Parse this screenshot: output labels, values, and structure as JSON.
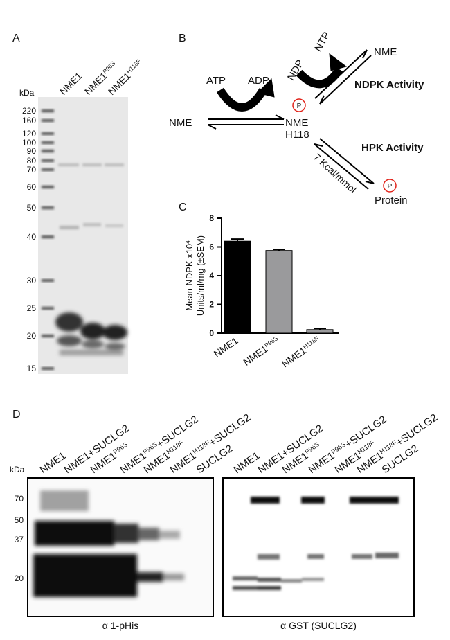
{
  "panel_a": {
    "label": "A",
    "unit": "kDa",
    "markers": [
      220,
      160,
      120,
      100,
      90,
      80,
      70,
      60,
      50,
      40,
      30,
      25,
      20,
      15
    ],
    "lanes": [
      {
        "base": "NME1"
      },
      {
        "base": "NME1",
        "sup": "P96S"
      },
      {
        "base": "NME1",
        "sup": "H118F"
      }
    ]
  },
  "panel_b": {
    "label": "B",
    "atp": "ATP",
    "adp": "ADP",
    "nme_left": "NME",
    "nme_center": "NME",
    "h118": "H118",
    "ndp": "NDP",
    "ntp": "NTP",
    "nme_right": "NME",
    "ndpk": "NDPK Activity",
    "hpk": "HPK Activity",
    "energy": "7 Kcal/mmol",
    "protein": "Protein",
    "phospho": "P"
  },
  "chart_data": {
    "type": "bar",
    "panel_label": "C",
    "ylabel": {
      "base": "Mean NDPK x10",
      "sup": "4"
    },
    "ylabel2": "Units/ml/mg (±SEM)",
    "categories": [
      {
        "base": "NME1"
      },
      {
        "base": "NME1",
        "sup": "P96S"
      },
      {
        "base": "NME1",
        "sup": "H118F"
      }
    ],
    "values": [
      6.4,
      5.75,
      0.25
    ],
    "errors": [
      0.15,
      0.08,
      0.08
    ],
    "colors": [
      "#000000",
      "#9a9a9c",
      "#9a9a9c"
    ],
    "ylim": [
      0,
      8
    ],
    "yticks": [
      0,
      2,
      4,
      6,
      8
    ]
  },
  "panel_d": {
    "label": "D",
    "unit": "kDa",
    "markers": [
      70,
      50,
      37,
      20
    ],
    "lanes": [
      {
        "base": "NME1"
      },
      {
        "base": "NME1+SUCLG2"
      },
      {
        "base": "NME1",
        "sup": "P96S"
      },
      {
        "base": "NME1",
        "sup": "P96S",
        "rest": "+SUCLG2"
      },
      {
        "base": "NME1",
        "sup": "H118F"
      },
      {
        "base": "NME1",
        "sup": "H118F",
        "rest": "+SUCLG2"
      },
      {
        "base": "SUCLG2"
      }
    ],
    "left_caption": "α 1-pHis",
    "right_caption": "α GST (SUCLG2)"
  }
}
